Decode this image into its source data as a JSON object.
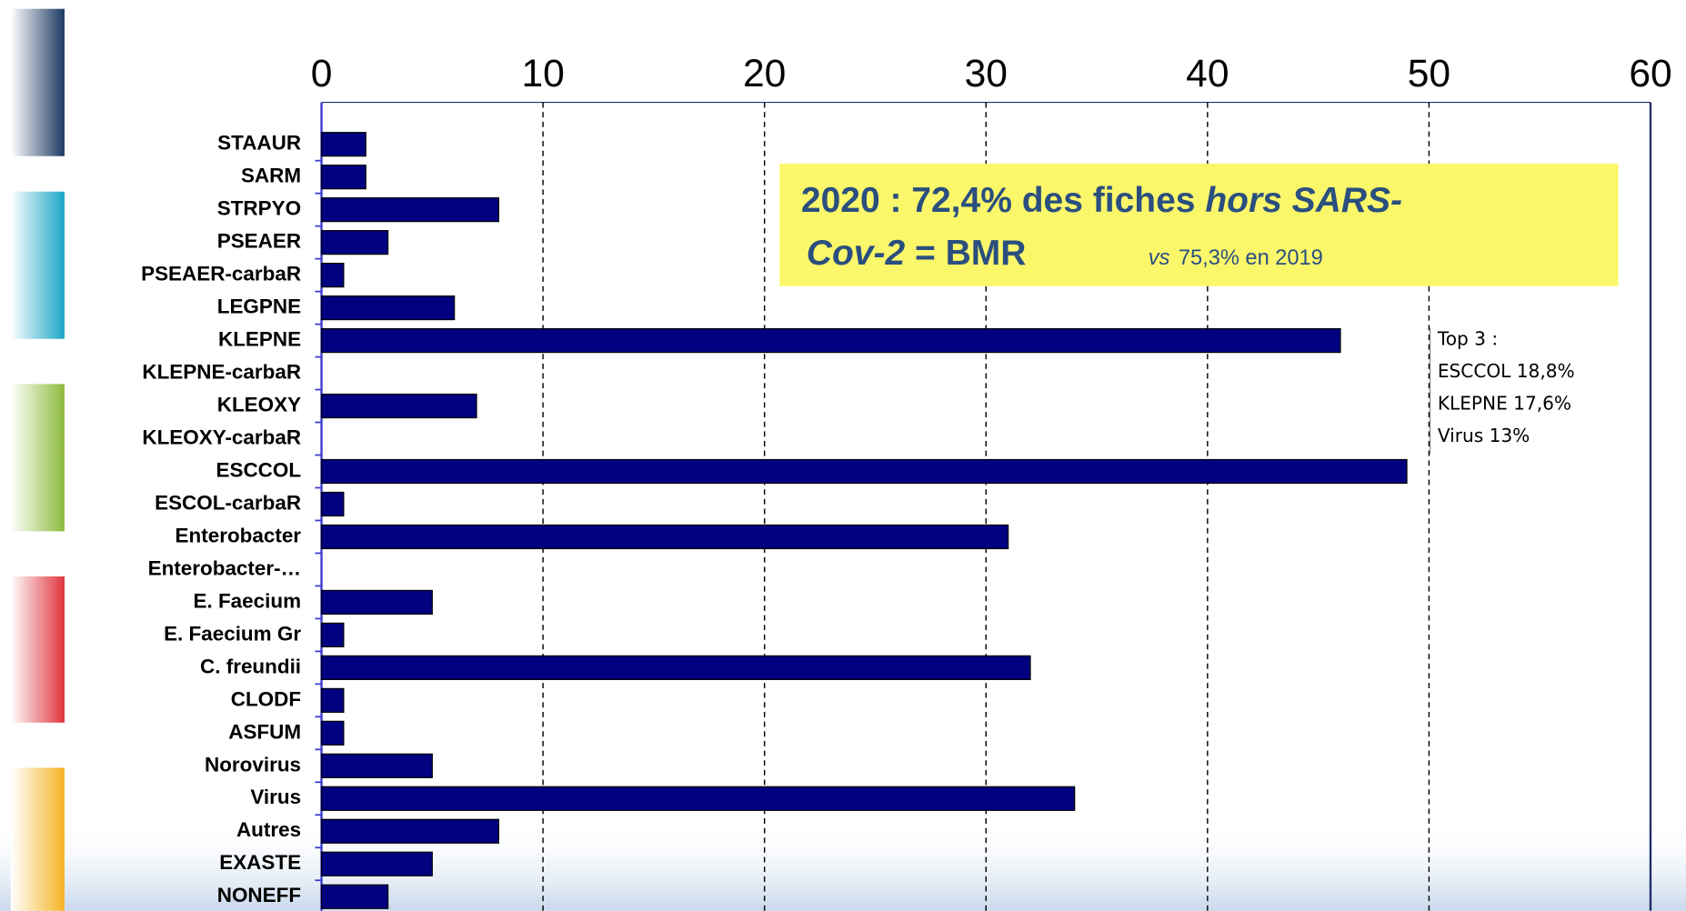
{
  "chart_data": {
    "type": "bar",
    "orientation": "horizontal",
    "categories": [
      "STAAUR",
      "SARM",
      "STRPYO",
      "PSEAER",
      "PSEAER-carbaR",
      "LEGPNE",
      "KLEPNE",
      "KLEPNE-carbaR",
      "KLEOXY",
      "KLEOXY-carbaR",
      "ESCCOL",
      "ESCOL-carbaR",
      "Enterobacter",
      "Enterobacter-…",
      "E. Faecium",
      "E. Faecium Gr",
      "C. freundii",
      "CLODF",
      "ASFUM",
      "Norovirus",
      "Virus",
      "Autres",
      "EXASTE",
      "NONEFF"
    ],
    "values": [
      2,
      2,
      8,
      3,
      1,
      6,
      46,
      0,
      7,
      0,
      49,
      1,
      31,
      0,
      5,
      1,
      32,
      1,
      1,
      5,
      34,
      8,
      5,
      3
    ],
    "color": "#000080",
    "xlim": [
      0,
      60
    ],
    "xticks": [
      0,
      10,
      20,
      30,
      40,
      50,
      60
    ],
    "grid": true,
    "annotation": [
      "2020 : 72,4% des fiches",
      "hors SARS-",
      "Cov-2",
      "= BMR",
      "vs",
      "75,3%  en 2019"
    ],
    "note": [
      "Top 3 :",
      "ESCCOL 18,8%",
      "KLEPNE 17,6%",
      "Virus 13%"
    ]
  }
}
